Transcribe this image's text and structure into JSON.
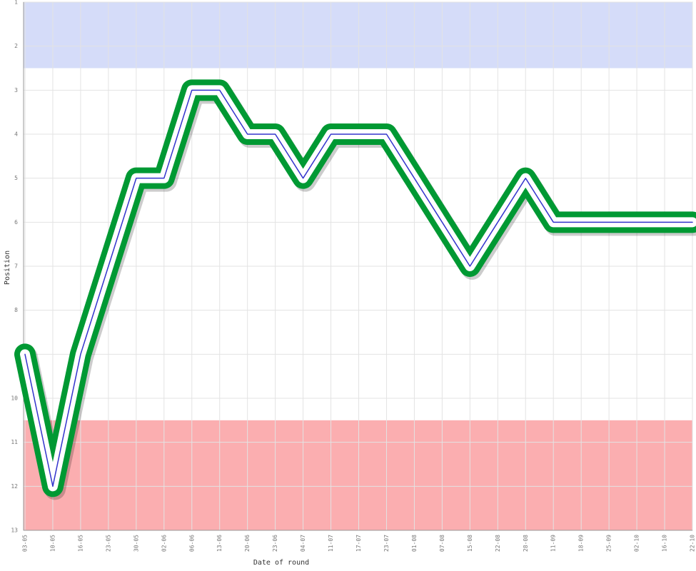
{
  "chart_data": {
    "type": "line",
    "x_label": "Date of round",
    "y_label": "Position",
    "categories": [
      "03-05",
      "10-05",
      "16-05",
      "23-05",
      "30-05",
      "02-06",
      "06-06",
      "13-06",
      "20-06",
      "23-06",
      "04-07",
      "11-07",
      "17-07",
      "23-07",
      "01-08",
      "07-08",
      "15-08",
      "22-08",
      "28-08",
      "11-09",
      "18-09",
      "25-09",
      "02-10",
      "16-10",
      "22-10"
    ],
    "series": [
      {
        "color": "#3333cc",
        "outline_color": "#009933",
        "values": [
          9,
          12,
          9,
          7,
          5,
          5,
          3,
          3,
          4,
          4,
          5,
          4,
          4,
          4,
          5,
          6,
          7,
          6,
          5,
          6,
          6,
          6,
          6,
          6,
          6
        ]
      }
    ],
    "ylim": [
      1,
      13
    ],
    "y_inverted": true,
    "yticks": [
      1,
      2,
      3,
      4,
      5,
      6,
      7,
      8,
      9,
      10,
      11,
      12,
      13
    ],
    "grid": true,
    "bands": [
      {
        "from": 1,
        "to": 2.5,
        "color": "#d5dcf9"
      },
      {
        "from": 10.5,
        "to": 13,
        "color": "#fbaeb0"
      }
    ]
  }
}
